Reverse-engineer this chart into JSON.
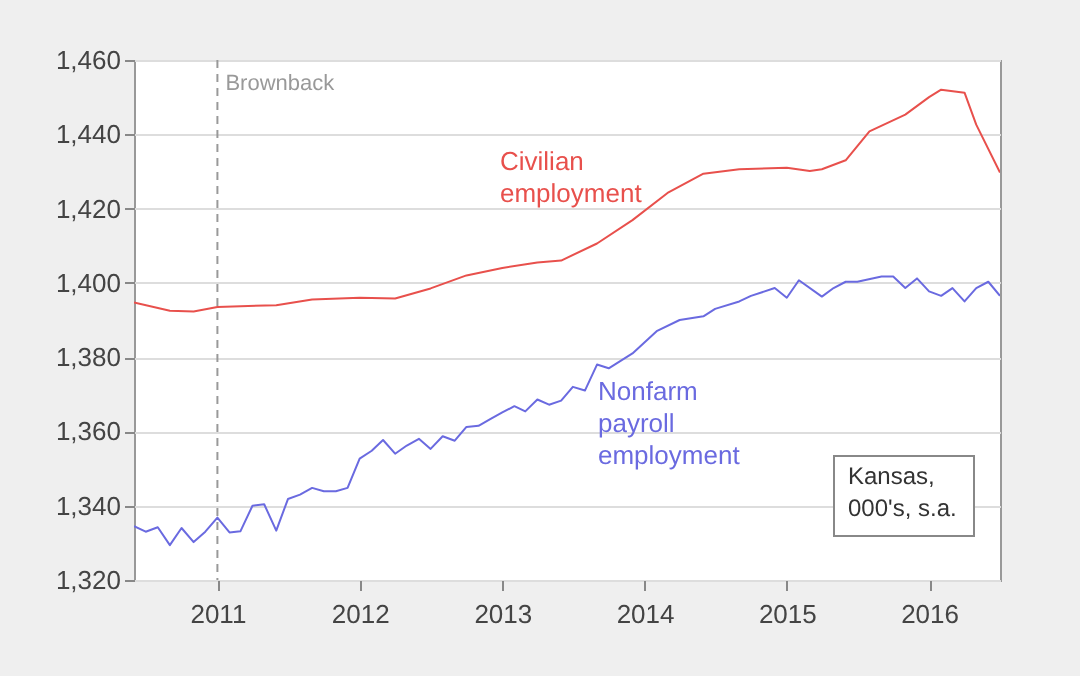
{
  "chart_data": {
    "type": "line",
    "xlim": [
      "2010-06",
      "2016-07"
    ],
    "xticks": [
      {
        "value": "2011",
        "label": "2011"
      },
      {
        "value": "2012",
        "label": "2012"
      },
      {
        "value": "2013",
        "label": "2013"
      },
      {
        "value": "2014",
        "label": "2014"
      },
      {
        "value": "2015",
        "label": "2015"
      },
      {
        "value": "2016",
        "label": "2016"
      }
    ],
    "ylim": [
      1320,
      1460
    ],
    "yticks": [
      {
        "value": 1320,
        "label": "1,320"
      },
      {
        "value": 1340,
        "label": "1,340"
      },
      {
        "value": 1360,
        "label": "1,360"
      },
      {
        "value": 1380,
        "label": "1,380"
      },
      {
        "value": 1400,
        "label": "1,400"
      },
      {
        "value": 1420,
        "label": "1,420"
      },
      {
        "value": 1440,
        "label": "1,440"
      },
      {
        "value": 1460,
        "label": "1,460"
      }
    ],
    "grid": "y",
    "legend": false,
    "series": [
      {
        "name": "Civilian employment",
        "color": "#e8504c",
        "x": [
          "2010-06",
          "2010-09",
          "2010-11",
          "2011-01",
          "2011-06",
          "2011-09",
          "2012-01",
          "2012-04",
          "2012-07",
          "2012-10",
          "2013-01",
          "2013-04",
          "2013-06",
          "2013-09",
          "2013-12",
          "2014-03",
          "2014-06",
          "2014-09",
          "2015-01",
          "2015-03",
          "2015-04",
          "2015-06",
          "2015-08",
          "2015-11",
          "2016-01",
          "2016-02",
          "2016-04",
          "2016-05",
          "2016-07"
        ],
        "values": [
          1394.7,
          1392.5,
          1392.3,
          1393.5,
          1394,
          1395.5,
          1396,
          1395.8,
          1398.5,
          1402,
          1404,
          1405.5,
          1406,
          1410.6,
          1416.9,
          1424.2,
          1429.4,
          1430.6,
          1431,
          1430.1,
          1430.6,
          1433,
          1440.8,
          1445.3,
          1450,
          1452,
          1451.2,
          1442.6,
          1429.7
        ]
      },
      {
        "name": "Nonfarm payroll employment",
        "color": "#6a6ae0",
        "x": [
          "2010-06",
          "2010-07",
          "2010-08",
          "2010-09",
          "2010-10",
          "2010-11",
          "2010-12",
          "2011-01",
          "2011-02",
          "2011-03",
          "2011-04",
          "2011-05",
          "2011-06",
          "2011-07",
          "2011-08",
          "2011-09",
          "2011-10",
          "2011-11",
          "2011-12",
          "2012-01",
          "2012-02",
          "2012-03",
          "2012-04",
          "2012-05",
          "2012-06",
          "2012-07",
          "2012-08",
          "2012-09",
          "2012-10",
          "2012-11",
          "2012-12",
          "2013-01",
          "2013-02",
          "2013-03",
          "2013-04",
          "2013-05",
          "2013-06",
          "2013-07",
          "2013-08",
          "2013-09",
          "2013-10",
          "2013-12",
          "2014-02",
          "2014-04",
          "2014-06",
          "2014-07",
          "2014-09",
          "2014-10",
          "2014-12",
          "2015-01",
          "2015-02",
          "2015-04",
          "2015-05",
          "2015-06",
          "2015-07",
          "2015-09",
          "2015-10",
          "2015-11",
          "2015-12",
          "2016-01",
          "2016-02",
          "2016-03",
          "2016-04",
          "2016-05",
          "2016-06",
          "2016-07"
        ],
        "values": [
          1334.5,
          1333,
          1334.2,
          1329.4,
          1334,
          1330.2,
          1333,
          1336.8,
          1332.8,
          1333.1,
          1340,
          1340.4,
          1333.3,
          1341.8,
          1343,
          1344.8,
          1343.9,
          1343.9,
          1344.8,
          1352.7,
          1354.8,
          1357.7,
          1354,
          1356.2,
          1358,
          1355.3,
          1358.7,
          1357.5,
          1361.2,
          1361.5,
          1363.3,
          1365.1,
          1366.8,
          1365.4,
          1368.6,
          1367.2,
          1368.3,
          1372,
          1371,
          1378,
          1377,
          1381,
          1387,
          1390,
          1391,
          1393,
          1395,
          1396.5,
          1398.6,
          1396,
          1400.7,
          1396.3,
          1398.6,
          1400.3,
          1400.3,
          1401.7,
          1401.7,
          1398.6,
          1401.2,
          1397.7,
          1396.5,
          1398.6,
          1395,
          1398.6,
          1400.3,
          1396.5
        ]
      }
    ],
    "ref_lines": [
      {
        "axis": "x",
        "value": "2011-01",
        "label": "Brownback",
        "color": "#999999",
        "line_style": "dashed"
      }
    ],
    "annotations": [
      "Kansas,\n000's, s.a."
    ]
  }
}
